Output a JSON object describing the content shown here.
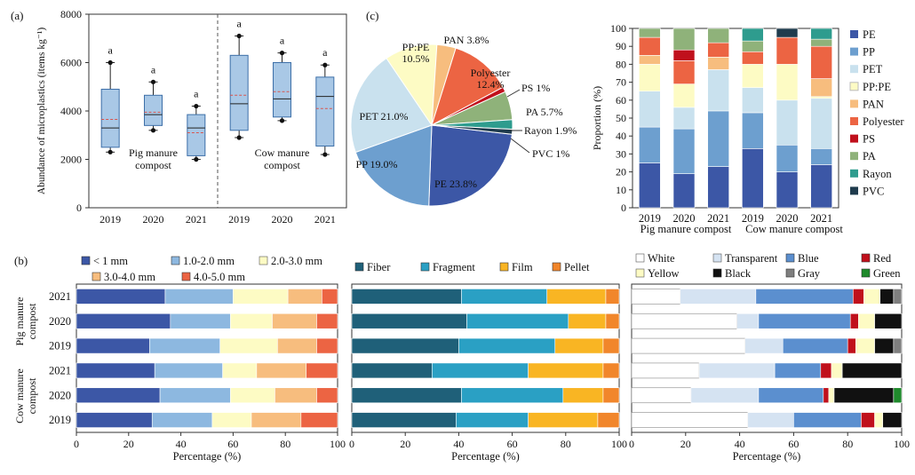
{
  "panels": {
    "a": "(a)",
    "b": "(b)",
    "c": "(c)"
  },
  "chart_data": [
    {
      "id": "box",
      "type": "box",
      "ylabel": "Abundance of microplastics (items kg⁻¹)",
      "ylim": [
        0,
        8000
      ],
      "yticks": [
        0,
        2000,
        4000,
        6000,
        8000
      ],
      "groups": [
        {
          "name": "Pig manure compost",
          "name_lines": [
            "Pig manure",
            "compost"
          ]
        },
        {
          "name": "Cow manure compost",
          "name_lines": [
            "Cow manure",
            "compost"
          ]
        }
      ],
      "categories": [
        "2019",
        "2020",
        "2021",
        "2019",
        "2020",
        "2021"
      ],
      "boxes": [
        {
          "group": 0,
          "whisker_low": 2300,
          "q1": 2500,
          "median": 3300,
          "mean": 3650,
          "q3": 4900,
          "whisker_high": 6000,
          "letter": "a"
        },
        {
          "group": 0,
          "whisker_low": 3200,
          "q1": 3400,
          "median": 3850,
          "mean": 3950,
          "q3": 4650,
          "whisker_high": 5200,
          "letter": "a"
        },
        {
          "group": 0,
          "whisker_low": 2000,
          "q1": 2150,
          "median": 3300,
          "mean": 3100,
          "q3": 3850,
          "whisker_high": 4200,
          "letter": "a"
        },
        {
          "group": 1,
          "whisker_low": 2900,
          "q1": 3200,
          "median": 4300,
          "mean": 4650,
          "q3": 6300,
          "whisker_high": 7100,
          "letter": "a"
        },
        {
          "group": 1,
          "whisker_low": 3600,
          "q1": 3750,
          "median": 4500,
          "mean": 4800,
          "q3": 6000,
          "whisker_high": 6400,
          "letter": "a"
        },
        {
          "group": 1,
          "whisker_low": 2200,
          "q1": 2550,
          "median": 4600,
          "mean": 4100,
          "q3": 5400,
          "whisker_high": 5900,
          "letter": "a"
        }
      ],
      "colors": {
        "box": "#a9c8e6",
        "box_edge": "#3d6fa8",
        "mean": "#d9544d"
      }
    },
    {
      "id": "pie",
      "type": "pie",
      "slices": [
        {
          "label": "PE 23.8%",
          "value": 23.8,
          "color": "#3c57a6"
        },
        {
          "label": "PP 19.0%",
          "value": 19.0,
          "color": "#6d9fcf"
        },
        {
          "label": "PET 21.0%",
          "value": 21.0,
          "color": "#c9e1ee"
        },
        {
          "label": "PP:PE 10.5%",
          "label_lines": [
            "PP:PE",
            "10.5%"
          ],
          "value": 10.5,
          "color": "#fdfbc4"
        },
        {
          "label": "PAN 3.8%",
          "value": 3.8,
          "color": "#f7bd7e"
        },
        {
          "label": "Polyester 12.4%",
          "label_lines": [
            "Polyester",
            "12.4%"
          ],
          "value": 12.4,
          "color": "#ec6443"
        },
        {
          "label": "PS 1%",
          "value": 1.0,
          "color": "#c0101c"
        },
        {
          "label": "PA 5.7%",
          "value": 5.7,
          "color": "#8fb27a"
        },
        {
          "label": "Rayon 1.9%",
          "value": 1.9,
          "color": "#2e9c8e"
        },
        {
          "label": "PVC 1%",
          "value": 1.0,
          "color": "#1f3b4d"
        }
      ]
    },
    {
      "id": "stack",
      "type": "stacked-bar",
      "ylabel": "Proportion (%)",
      "ylim": [
        0,
        100
      ],
      "yticks": [
        0,
        10,
        20,
        30,
        40,
        50,
        60,
        70,
        80,
        90,
        100
      ],
      "categories": [
        "2019",
        "2020",
        "2021",
        "2019",
        "2020",
        "2021"
      ],
      "groups": [
        "Pig manure compost",
        "Cow manure compost"
      ],
      "series": [
        {
          "name": "PE",
          "color": "#3c57a6",
          "values": [
            25,
            19,
            23,
            33,
            20,
            24
          ]
        },
        {
          "name": "PP",
          "color": "#6d9fcf",
          "values": [
            20,
            25,
            31,
            20,
            15,
            9
          ]
        },
        {
          "name": "PET",
          "color": "#c9e1ee",
          "values": [
            20,
            12,
            23,
            14,
            25,
            28
          ]
        },
        {
          "name": "PP:PE",
          "color": "#fdfbc4",
          "values": [
            15,
            13,
            0,
            13,
            20,
            1
          ]
        },
        {
          "name": "PAN",
          "color": "#f7bd7e",
          "values": [
            5,
            0,
            7,
            0,
            0,
            10
          ]
        },
        {
          "name": "Polyester",
          "color": "#ec6443",
          "values": [
            10,
            13,
            8,
            7,
            15,
            18
          ]
        },
        {
          "name": "PS",
          "color": "#c0101c",
          "values": [
            0,
            6,
            0,
            0,
            0,
            0
          ]
        },
        {
          "name": "PA",
          "color": "#8fb27a",
          "values": [
            5,
            12,
            8,
            6,
            0,
            4
          ]
        },
        {
          "name": "Rayon",
          "color": "#2e9c8e",
          "values": [
            0,
            0,
            0,
            7,
            0,
            6
          ]
        },
        {
          "name": "PVC",
          "color": "#1f3b4d",
          "values": [
            0,
            0,
            0,
            0,
            5,
            0
          ]
        }
      ]
    },
    {
      "id": "size",
      "type": "horizontal-stacked-bar",
      "xlabel": "Percentage (%)",
      "xlim": [
        0,
        100
      ],
      "xticks": [
        0,
        20,
        40,
        60,
        80,
        100
      ],
      "rows": [
        "2021",
        "2020",
        "2019",
        "2021",
        "2020",
        "2019"
      ],
      "row_groups": [
        {
          "name_lines": [
            "Pig manure",
            "compost"
          ],
          "rows": [
            0,
            1,
            2
          ]
        },
        {
          "name_lines": [
            "Cow manure",
            "compost"
          ],
          "rows": [
            3,
            4,
            5
          ]
        }
      ],
      "series": [
        {
          "name": "< 1 mm",
          "color": "#3c57a6",
          "values": [
            34,
            36,
            28,
            30,
            32,
            29
          ]
        },
        {
          "name": "1.0-2.0 mm",
          "color": "#8db8e0",
          "values": [
            26,
            23,
            27,
            26,
            27,
            23
          ]
        },
        {
          "name": "2.0-3.0 mm",
          "color": "#fdfbc4",
          "values": [
            21,
            16,
            22,
            13,
            17,
            15
          ]
        },
        {
          "name": "3.0-4.0 mm",
          "color": "#f7bd7e",
          "values": [
            13,
            17,
            15,
            19,
            16,
            19
          ]
        },
        {
          "name": "4.0-5.0 mm",
          "color": "#ec6443",
          "values": [
            6,
            8,
            8,
            12,
            8,
            14
          ]
        }
      ]
    },
    {
      "id": "shape",
      "type": "horizontal-stacked-bar",
      "xlabel": "Percentage (%)",
      "xlim": [
        0,
        100
      ],
      "xticks": [
        0,
        20,
        40,
        60,
        80,
        100
      ],
      "rows": [
        "2021",
        "2020",
        "2019",
        "2021",
        "2020",
        "2019"
      ],
      "series": [
        {
          "name": "Fiber",
          "color": "#1f6079",
          "values": [
            41,
            43,
            40,
            30,
            41,
            39
          ]
        },
        {
          "name": "Fragment",
          "color": "#2aa0c4",
          "values": [
            32,
            38,
            36,
            36,
            38,
            27
          ]
        },
        {
          "name": "Film",
          "color": "#f9b523",
          "values": [
            22,
            14,
            18,
            28,
            15,
            26
          ]
        },
        {
          "name": "Pellet",
          "color": "#f1862b",
          "values": [
            5,
            5,
            6,
            6,
            6,
            8
          ]
        }
      ]
    },
    {
      "id": "color",
      "type": "horizontal-stacked-bar",
      "xlabel": "Percentage (%)",
      "xlim": [
        0,
        100
      ],
      "xticks": [
        0,
        20,
        40,
        60,
        80,
        100
      ],
      "rows": [
        "2021",
        "2020",
        "2019",
        "2021",
        "2020",
        "2019"
      ],
      "series": [
        {
          "name": "White",
          "color": "#ffffff",
          "values": [
            18,
            39,
            42,
            25,
            22,
            43
          ]
        },
        {
          "name": "Transparent",
          "color": "#d5e3f2",
          "values": [
            28,
            8,
            14,
            28,
            25,
            17
          ]
        },
        {
          "name": "Blue",
          "color": "#5b8fcf",
          "values": [
            36,
            34,
            24,
            17,
            24,
            25
          ]
        },
        {
          "name": "Red",
          "color": "#c0101c",
          "values": [
            4,
            3,
            3,
            4,
            2,
            5
          ]
        },
        {
          "name": "Yellow",
          "color": "#fdfbc4",
          "values": [
            6,
            6,
            7,
            4,
            2,
            3
          ]
        },
        {
          "name": "Black",
          "color": "#111111",
          "values": [
            5,
            10,
            7,
            22,
            22,
            7
          ]
        },
        {
          "name": "Gray",
          "color": "#7f7f7f",
          "values": [
            3,
            0,
            3,
            0,
            0,
            0
          ]
        },
        {
          "name": "Green",
          "color": "#1f8a2c",
          "values": [
            0,
            0,
            0,
            0,
            3,
            0
          ]
        }
      ]
    }
  ]
}
